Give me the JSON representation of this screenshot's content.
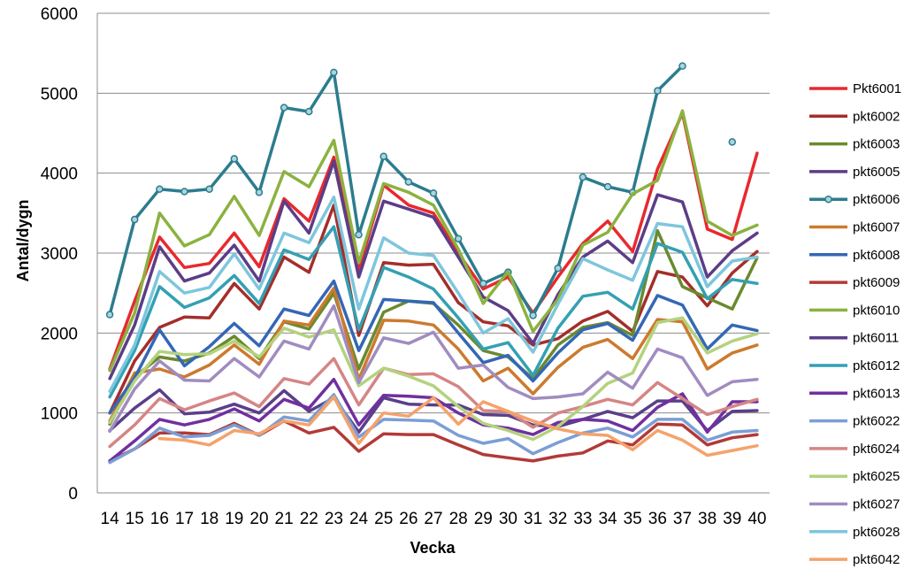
{
  "chart_data": {
    "type": "line",
    "title": "",
    "xlabel": "Vecka",
    "ylabel": "Antal/dygn",
    "ylim": [
      0,
      6000
    ],
    "yticks": [
      0,
      1000,
      2000,
      3000,
      4000,
      5000,
      6000
    ],
    "grid": "horizontal",
    "legend": "right",
    "x": [
      14,
      15,
      16,
      17,
      18,
      19,
      20,
      21,
      22,
      23,
      24,
      25,
      26,
      27,
      28,
      29,
      30,
      31,
      32,
      33,
      34,
      35,
      36,
      37,
      38,
      39,
      40
    ],
    "series": [
      {
        "name": "Pkt6001",
        "color": "#e8292e",
        "values": [
          1550,
          2400,
          3200,
          2820,
          2870,
          3250,
          2830,
          3680,
          3400,
          4200,
          2800,
          3850,
          3600,
          3500,
          3000,
          2550,
          2700,
          2250,
          2700,
          3120,
          3400,
          3020,
          4050,
          4750,
          3300,
          3170,
          4250
        ]
      },
      {
        "name": "pkt6002",
        "color": "#a42e2b",
        "values": [
          1000,
          1650,
          2070,
          2200,
          2190,
          2620,
          2300,
          2950,
          2760,
          3600,
          1970,
          2880,
          2850,
          2860,
          2380,
          2140,
          2090,
          1850,
          1930,
          2150,
          2270,
          2020,
          2770,
          2700,
          2340,
          2750,
          3020
        ]
      },
      {
        "name": "pkt6003",
        "color": "#6a8a2f",
        "values": [
          860,
          1450,
          1700,
          1650,
          1750,
          1960,
          1680,
          2140,
          2050,
          2500,
          1550,
          2260,
          2400,
          2370,
          2100,
          1780,
          1700,
          1430,
          1850,
          2070,
          2130,
          1970,
          3280,
          2580,
          2440,
          2300,
          2940
        ]
      },
      {
        "name": "pkt6005",
        "color": "#5c3d87",
        "values": [
          1430,
          2100,
          3080,
          2650,
          2750,
          3100,
          2650,
          3650,
          3250,
          4150,
          2700,
          3650,
          3550,
          3450,
          2950,
          2450,
          2280,
          1870,
          2480,
          2950,
          3150,
          2880,
          3730,
          3640,
          2700,
          3030,
          3250
        ]
      },
      {
        "name": "pkt6006",
        "color": "#2c7c8e",
        "values": [
          2230,
          3420,
          3800,
          3770,
          3800,
          4180,
          3760,
          4820,
          4770,
          5260,
          3230,
          4210,
          3890,
          3750,
          3180,
          2620,
          2760,
          2220,
          2810,
          3950,
          3830,
          3760,
          5030,
          5340,
          null,
          4390,
          null
        ]
      },
      {
        "name": "pkt6007",
        "color": "#cc7a2e",
        "values": [
          900,
          1500,
          1550,
          1450,
          1600,
          1850,
          1610,
          2150,
          2100,
          2560,
          1420,
          2160,
          2150,
          2100,
          1800,
          1400,
          1560,
          1240,
          1570,
          1820,
          1920,
          1680,
          2170,
          2140,
          1550,
          1750,
          1850
        ]
      },
      {
        "name": "pkt6008",
        "color": "#3467b5",
        "values": [
          1000,
          1440,
          2040,
          1590,
          1830,
          2120,
          1840,
          2300,
          2220,
          2650,
          1780,
          2420,
          2400,
          2380,
          2000,
          1630,
          1720,
          1400,
          1750,
          2040,
          2120,
          1910,
          2470,
          2350,
          1800,
          2100,
          2030
        ]
      },
      {
        "name": "pkt6009",
        "color": "#b23a37",
        "values": [
          400,
          550,
          750,
          750,
          730,
          870,
          720,
          900,
          750,
          820,
          520,
          740,
          730,
          730,
          600,
          480,
          440,
          400,
          460,
          500,
          650,
          600,
          860,
          850,
          600,
          690,
          730
        ]
      },
      {
        "name": "pkt6010",
        "color": "#8bb240",
        "values": [
          1530,
          2250,
          3500,
          3090,
          3230,
          3710,
          3220,
          4020,
          3830,
          4410,
          2880,
          3870,
          3760,
          3600,
          3050,
          2370,
          2770,
          2020,
          2420,
          3100,
          3260,
          3740,
          3910,
          4780,
          3400,
          3220,
          3350
        ]
      },
      {
        "name": "pkt6011",
        "color": "#5a3f89",
        "values": [
          780,
          1060,
          1290,
          990,
          1010,
          1110,
          1000,
          1280,
          1020,
          1190,
          760,
          1190,
          1110,
          1100,
          1100,
          980,
          970,
          850,
          830,
          920,
          1020,
          940,
          1150,
          1150,
          780,
          1020,
          1030
        ]
      },
      {
        "name": "pkt6012",
        "color": "#34a0b3",
        "values": [
          1200,
          1780,
          2580,
          2320,
          2440,
          2720,
          2370,
          3040,
          2920,
          3330,
          2040,
          2820,
          2700,
          2550,
          2190,
          1800,
          1880,
          1470,
          2060,
          2460,
          2510,
          2300,
          3120,
          3010,
          2430,
          2670,
          2620
        ]
      },
      {
        "name": "pkt6013",
        "color": "#7030a0",
        "values": [
          400,
          650,
          920,
          850,
          920,
          1050,
          900,
          1170,
          1060,
          1420,
          850,
          1220,
          1210,
          1190,
          1000,
          850,
          810,
          730,
          880,
          920,
          900,
          780,
          1070,
          1240,
          760,
          1140,
          1140
        ]
      },
      {
        "name": "pkt6022",
        "color": "#7b9ed4",
        "values": [
          380,
          550,
          810,
          700,
          720,
          850,
          720,
          950,
          900,
          1230,
          700,
          920,
          910,
          900,
          720,
          620,
          680,
          490,
          630,
          750,
          810,
          700,
          920,
          920,
          660,
          760,
          780
        ]
      },
      {
        "name": "pkt6024",
        "color": "#d58585",
        "values": [
          580,
          850,
          1180,
          1040,
          1150,
          1250,
          1080,
          1430,
          1360,
          1680,
          1100,
          1560,
          1480,
          1490,
          1330,
          1030,
          1020,
          820,
          1000,
          1080,
          1170,
          1100,
          1380,
          1180,
          980,
          1080,
          1170
        ]
      },
      {
        "name": "pkt6025",
        "color": "#b4d27e",
        "values": [
          880,
          1400,
          1770,
          1730,
          1740,
          1900,
          1700,
          2060,
          1950,
          2040,
          1340,
          1560,
          1460,
          1340,
          1080,
          870,
          780,
          670,
          830,
          1080,
          1370,
          1500,
          2130,
          2190,
          1750,
          1900,
          1990
        ]
      },
      {
        "name": "pkt6027",
        "color": "#a08cc0",
        "values": [
          770,
          1300,
          1650,
          1410,
          1400,
          1680,
          1450,
          1900,
          1800,
          2340,
          1380,
          1940,
          1870,
          2010,
          1560,
          1600,
          1320,
          1180,
          1200,
          1240,
          1510,
          1310,
          1800,
          1690,
          1220,
          1390,
          1420
        ]
      },
      {
        "name": "pkt6028",
        "color": "#7ec6dc",
        "values": [
          1270,
          1850,
          2770,
          2500,
          2570,
          2990,
          2550,
          3250,
          3130,
          3700,
          2300,
          3190,
          3000,
          2970,
          2500,
          2000,
          2180,
          1760,
          2360,
          2930,
          2790,
          2660,
          3370,
          3330,
          2580,
          2900,
          2950
        ]
      },
      {
        "name": "pkt6042",
        "color": "#f5a26b",
        "values": [
          null,
          null,
          680,
          660,
          600,
          780,
          740,
          900,
          850,
          1200,
          620,
          1000,
          960,
          1190,
          860,
          1140,
          1020,
          900,
          800,
          740,
          720,
          540,
          780,
          660,
          470,
          530,
          590
        ]
      }
    ]
  }
}
